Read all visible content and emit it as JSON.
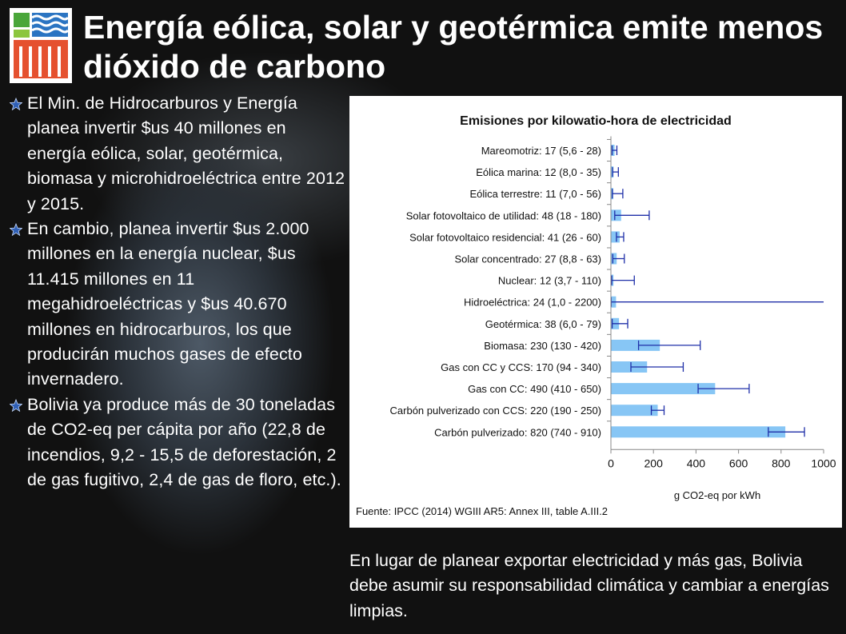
{
  "slide": {
    "title": "Energía eólica, solar y geotérmica emite menos dióxido de carbono",
    "bullets": [
      "El Min. de Hidrocarburos y Energía planea invertir $us 40 millones en energía eólica, solar, geotérmica, biomasa y microhidroeléctrica entre 2012 y 2015.",
      "En cambio, planea invertir $us 2.000 millones en la energía nuclear, $us 11.415 millones en 11 megahidroeléctricas y $us 40.670 millones en hidrocarburos, los que producirán muchos gases de efecto invernadero.",
      "Bolivia ya produce más de 30 toneladas de CO2-eq per cápita por año (22,8 de incendios, 9,2 - 15,5 de deforestación, 2 de gas fugitivo, 2,4 de gas de floro, etc.)."
    ],
    "bottom_note": "En lugar de planear exportar electricidad y más gas, Bolivia debe asumir su responsabilidad climática y cambiar a energías limpias."
  },
  "chart_data": {
    "type": "bar",
    "orientation": "horizontal",
    "title": "Emisiones por kilowatio-hora de electricidad",
    "xlabel": "g CO2-eq por kWh",
    "source": "Fuente: IPCC (2014) WGIII AR5: Annex III, table A.III.2",
    "xlim": [
      0,
      1000
    ],
    "xticks": [
      0,
      200,
      400,
      600,
      800,
      1000
    ],
    "legend": "none",
    "grid": false,
    "bar_color": "#87c6f5",
    "error_color": "#1f2fa8",
    "categories": [
      "Mareomotriz: 17 (5,6 - 28)",
      "Eólica marina: 12 (8,0 - 35)",
      "Eólica terrestre: 11 (7,0 - 56)",
      "Solar fotovoltaico de utilidad: 48 (18 - 180)",
      "Solar fotovoltaico residencial: 41 (26 - 60)",
      "Solar concentrado: 27 (8,8 - 63)",
      "Nuclear: 12 (3,7 - 110)",
      "Hidroeléctrica: 24 (1,0 - 2200)",
      "Geotérmica: 38 (6,0 - 79)",
      "Biomasa: 230 (130 - 420)",
      "Gas con CC y CCS: 170 (94 - 340)",
      "Gas con CC: 490 (410 - 650)",
      "Carbón pulverizado con CCS: 220 (190 - 250)",
      "Carbón pulverizado: 820 (740 - 910)"
    ],
    "values": [
      17,
      12,
      11,
      48,
      41,
      27,
      12,
      24,
      38,
      230,
      170,
      490,
      220,
      820
    ],
    "low": [
      5.6,
      8.0,
      7.0,
      18,
      26,
      8.8,
      3.7,
      1.0,
      6.0,
      130,
      94,
      410,
      190,
      740
    ],
    "high": [
      28,
      35,
      56,
      180,
      60,
      63,
      110,
      2200,
      79,
      420,
      340,
      650,
      250,
      910
    ]
  }
}
